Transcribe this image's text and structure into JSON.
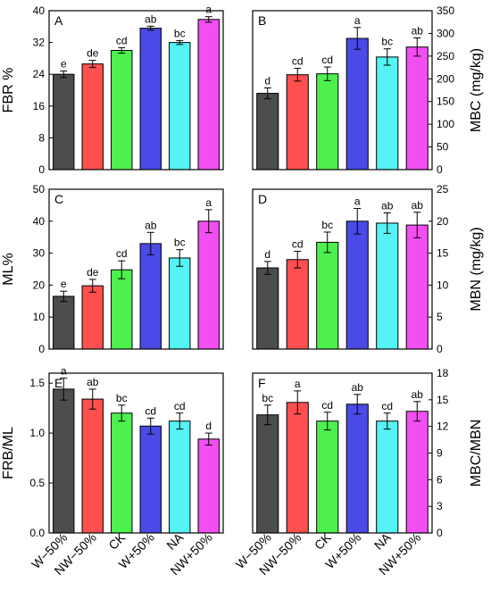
{
  "chart_data": [
    {
      "panel": "A",
      "type": "bar",
      "ylabel": "FBR %",
      "yaxis_side": "left",
      "ylim": [
        0,
        40
      ],
      "yticks": [
        "0",
        "8",
        "16",
        "24",
        "32",
        "40"
      ],
      "categories": [
        "W−50%",
        "NW−50%",
        "CK",
        "W+50%",
        "NA",
        "NW+50%"
      ],
      "values": [
        24.0,
        26.6,
        30.0,
        35.6,
        32.0,
        37.8
      ],
      "errors": [
        0.8,
        0.9,
        0.7,
        0.5,
        0.5,
        0.7
      ],
      "letters": [
        "e",
        "de",
        "cd",
        "ab",
        "bc",
        "a"
      ],
      "colors": [
        "#4d4d4d",
        "#ff4f4f",
        "#4ef04e",
        "#4a4ae6",
        "#55f3f3",
        "#f24ff2"
      ]
    },
    {
      "panel": "B",
      "type": "bar",
      "ylabel": "MBC (mg/kg)",
      "yaxis_side": "right",
      "ylim": [
        0,
        350
      ],
      "yticks": [
        "0",
        "50",
        "100",
        "150",
        "200",
        "250",
        "300",
        "350"
      ],
      "categories": [
        "W−50%",
        "NW−50%",
        "CK",
        "W+50%",
        "NA",
        "NW+50%"
      ],
      "values": [
        168,
        209,
        211,
        289,
        248,
        270
      ],
      "errors": [
        12,
        14,
        15,
        24,
        18,
        20
      ],
      "letters": [
        "d",
        "cd",
        "cd",
        "a",
        "bc",
        "ab"
      ],
      "colors": [
        "#4d4d4d",
        "#ff4f4f",
        "#4ef04e",
        "#4a4ae6",
        "#55f3f3",
        "#f24ff2"
      ]
    },
    {
      "panel": "C",
      "type": "bar",
      "ylabel": "ML%",
      "yaxis_side": "left",
      "ylim": [
        0,
        50
      ],
      "yticks": [
        "0",
        "10",
        "20",
        "30",
        "40",
        "50"
      ],
      "categories": [
        "W−50%",
        "NW−50%",
        "CK",
        "W+50%",
        "NA",
        "NW+50%"
      ],
      "values": [
        16.5,
        19.8,
        24.8,
        33.0,
        28.5,
        40.0
      ],
      "errors": [
        1.6,
        2.0,
        2.8,
        3.5,
        2.6,
        3.6
      ],
      "letters": [
        "e",
        "de",
        "cd",
        "ab",
        "bc",
        "a"
      ],
      "colors": [
        "#4d4d4d",
        "#ff4f4f",
        "#4ef04e",
        "#4a4ae6",
        "#55f3f3",
        "#f24ff2"
      ]
    },
    {
      "panel": "D",
      "type": "bar",
      "ylabel": "MBN (mg/kg)",
      "yaxis_side": "right",
      "ylim": [
        0,
        25
      ],
      "yticks": [
        "0",
        "5",
        "10",
        "15",
        "20",
        "25"
      ],
      "categories": [
        "W−50%",
        "NW−50%",
        "CK",
        "W+50%",
        "NA",
        "NW+50%"
      ],
      "values": [
        12.7,
        14.0,
        16.7,
        20.0,
        19.7,
        19.4
      ],
      "errors": [
        1.0,
        1.3,
        1.6,
        2.0,
        1.6,
        2.0
      ],
      "letters": [
        "d",
        "cd",
        "bc",
        "a",
        "ab",
        "ab"
      ],
      "colors": [
        "#4d4d4d",
        "#ff4f4f",
        "#4ef04e",
        "#4a4ae6",
        "#55f3f3",
        "#f24ff2"
      ]
    },
    {
      "panel": "E",
      "type": "bar",
      "ylabel": "FRB/ML",
      "yaxis_side": "left",
      "ylim": [
        0,
        1.6
      ],
      "yticks": [
        "0.0",
        "0.5",
        "1.0",
        "1.5"
      ],
      "categories": [
        "W−50%",
        "NW−50%",
        "CK",
        "W+50%",
        "NA",
        "NW+50%"
      ],
      "values": [
        1.44,
        1.34,
        1.2,
        1.07,
        1.12,
        0.94
      ],
      "errors": [
        0.11,
        0.1,
        0.08,
        0.08,
        0.08,
        0.06
      ],
      "letters": [
        "a",
        "ab",
        "bc",
        "cd",
        "cd",
        "d"
      ],
      "colors": [
        "#4d4d4d",
        "#ff4f4f",
        "#4ef04e",
        "#4a4ae6",
        "#55f3f3",
        "#f24ff2"
      ]
    },
    {
      "panel": "F",
      "type": "bar",
      "ylabel": "MBC/MBN",
      "yaxis_side": "right",
      "ylim": [
        0,
        18
      ],
      "yticks": [
        "0",
        "3",
        "6",
        "9",
        "12",
        "15",
        "18"
      ],
      "categories": [
        "W−50%",
        "NW−50%",
        "CK",
        "W+50%",
        "NA",
        "NW+50%"
      ],
      "values": [
        13.3,
        14.7,
        12.6,
        14.5,
        12.6,
        13.7
      ],
      "errors": [
        1.1,
        1.3,
        1.0,
        1.1,
        0.9,
        1.1
      ],
      "letters": [
        "bc",
        "a",
        "cd",
        "ab",
        "cd",
        "ab"
      ],
      "colors": [
        "#4d4d4d",
        "#ff4f4f",
        "#4ef04e",
        "#4a4ae6",
        "#55f3f3",
        "#f24ff2"
      ]
    }
  ]
}
